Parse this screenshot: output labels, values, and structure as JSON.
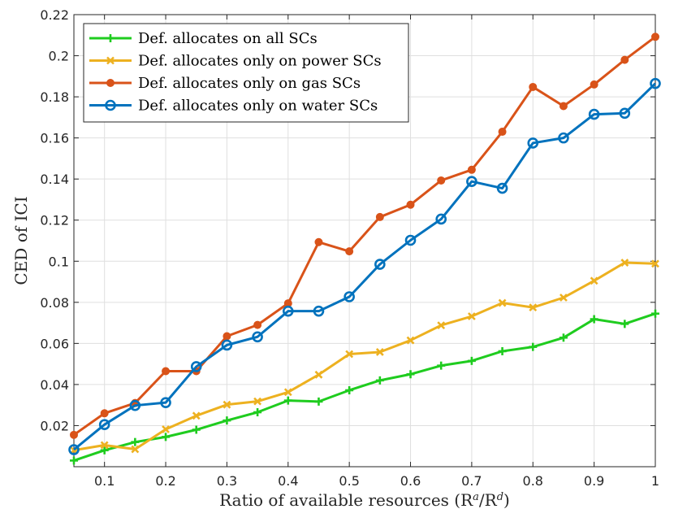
{
  "chart_data": {
    "type": "line",
    "title": "",
    "xlabel": "Ratio of available resources (R",
    "xlabel_sup_a": "a",
    "xlabel_slash": "/R",
    "xlabel_sup_d": "d",
    "xlabel_close": ")",
    "ylabel": "CED of ICI",
    "xlim": [
      0.05,
      1.0
    ],
    "ylim": [
      0.0,
      0.22
    ],
    "xticks": [
      0.1,
      0.2,
      0.3,
      0.4,
      0.5,
      0.6,
      0.7,
      0.8,
      0.9,
      1.0
    ],
    "xtick_labels": [
      "0.1",
      "0.2",
      "0.3",
      "0.4",
      "0.5",
      "0.6",
      "0.7",
      "0.8",
      "0.9",
      "1"
    ],
    "yticks": [
      0.02,
      0.04,
      0.06,
      0.08,
      0.1,
      0.12,
      0.14,
      0.16,
      0.18,
      0.2,
      0.22
    ],
    "ytick_labels": [
      "0.02",
      "0.04",
      "0.06",
      "0.08",
      "0.1",
      "0.12",
      "0.14",
      "0.16",
      "0.18",
      "0.2",
      "0.22"
    ],
    "grid": true,
    "legend_position": "top-left",
    "x": [
      0.05,
      0.1,
      0.15,
      0.2,
      0.25,
      0.3,
      0.35,
      0.4,
      0.45,
      0.5,
      0.55,
      0.6,
      0.65,
      0.7,
      0.75,
      0.8,
      0.85,
      0.9,
      0.95,
      1.0
    ],
    "series": [
      {
        "name": "Def. allocates on all SCs",
        "color": "#1fcc1f",
        "marker": "plus",
        "values": [
          0.003,
          0.008,
          0.012,
          0.0145,
          0.018,
          0.0225,
          0.0265,
          0.0322,
          0.0317,
          0.0372,
          0.042,
          0.045,
          0.0492,
          0.0515,
          0.0562,
          0.0583,
          0.0628,
          0.0718,
          0.0695,
          0.0745
        ]
      },
      {
        "name": "Def. allocates only on power SCs",
        "color": "#edb120",
        "marker": "x",
        "values": [
          0.008,
          0.0105,
          0.0085,
          0.0182,
          0.0248,
          0.0302,
          0.0318,
          0.0363,
          0.0448,
          0.0548,
          0.0558,
          0.0615,
          0.0688,
          0.0732,
          0.0797,
          0.0775,
          0.0823,
          0.0905,
          0.0993,
          0.0988
        ]
      },
      {
        "name": "Def. allocates only on gas SCs",
        "color": "#d95319",
        "marker": "dot",
        "values": [
          0.0155,
          0.026,
          0.031,
          0.0465,
          0.0465,
          0.0635,
          0.069,
          0.0795,
          0.1093,
          0.1048,
          0.1215,
          0.1275,
          0.1393,
          0.1445,
          0.163,
          0.1848,
          0.1755,
          0.186,
          0.198,
          0.2092
        ]
      },
      {
        "name": "Def. allocates only on water SCs",
        "color": "#0072bd",
        "marker": "circle",
        "values": [
          0.0083,
          0.0205,
          0.0298,
          0.0312,
          0.0487,
          0.0592,
          0.0632,
          0.0757,
          0.0757,
          0.0827,
          0.0985,
          0.1102,
          0.1205,
          0.1388,
          0.1355,
          0.1575,
          0.16,
          0.1715,
          0.172,
          0.1865
        ]
      }
    ]
  }
}
